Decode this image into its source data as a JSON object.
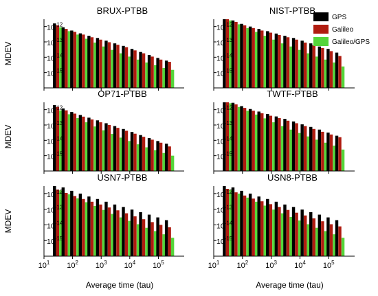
{
  "chart_data": {
    "type": "bar",
    "grid": false,
    "legend_placement": "top-right",
    "legend": [
      {
        "name": "GPS",
        "color": "#000000"
      },
      {
        "name": "Galileo",
        "color": "#b01c10"
      },
      {
        "name": "Galileo/GPS",
        "color": "#55d53a"
      }
    ],
    "ylabel": "MDEV",
    "xlabel": "Average time (tau)",
    "x_scale": "log",
    "y_scale": "log",
    "xlim": [
      10,
      800000
    ],
    "ylim": [
      1e-16,
      3e-12
    ],
    "x_ticks": [
      {
        "label": "10",
        "sup": "1",
        "value": 10
      },
      {
        "label": "10",
        "sup": "2",
        "value": 100
      },
      {
        "label": "10",
        "sup": "3",
        "value": 1000
      },
      {
        "label": "10",
        "sup": "4",
        "value": 10000
      },
      {
        "label": "10",
        "sup": "5",
        "value": 100000
      }
    ],
    "y_ticks": [
      {
        "label": "10",
        "sup": "-12",
        "value": 1e-12
      },
      {
        "label": "10",
        "sup": "-13",
        "value": 1e-13
      },
      {
        "label": "10",
        "sup": "-14",
        "value": 1e-14
      },
      {
        "label": "10",
        "sup": "-15",
        "value": 1e-15
      }
    ],
    "tau": [
      30,
      60,
      120,
      240,
      480,
      960,
      1920,
      3840,
      7680,
      15360,
      30720,
      61440,
      122880,
      245760
    ],
    "panels": [
      {
        "title": "BRUX-PTBB",
        "series": [
          {
            "name": "GPS",
            "values": [
              1.6e-12,
              9e-13,
              5.5e-13,
              3.6e-13,
              2.5e-13,
              1.8e-13,
              1.2e-13,
              8e-14,
              5.5e-14,
              3.5e-14,
              2.2e-14,
              1.4e-14,
              9e-15,
              6e-15
            ]
          },
          {
            "name": "Galileo",
            "values": [
              1.2e-12,
              7e-13,
              4.5e-13,
              3e-13,
              2e-13,
              1.4e-13,
              9.5e-14,
              6.5e-14,
              4.5e-14,
              2.8e-14,
              1.8e-14,
              1.1e-14,
              7e-15,
              5e-15
            ]
          },
          {
            "name": "Galileo/GPS",
            "values": [
              9e-13,
              5e-13,
              3e-13,
              1.6e-13,
              9e-14,
              5e-14,
              3e-14,
              1.8e-14,
              1.1e-14,
              7e-15,
              4.5e-15,
              3e-15,
              2e-15,
              1.5e-15
            ]
          }
        ]
      },
      {
        "title": "NIST-PTBB",
        "series": [
          {
            "name": "GPS",
            "values": [
              4.5e-12,
              2.5e-12,
              1.5e-12,
              1e-12,
              7e-13,
              5e-13,
              3.5e-13,
              2.5e-13,
              1.8e-13,
              1.2e-13,
              8e-14,
              5e-14,
              3.5e-14,
              2e-14
            ]
          },
          {
            "name": "Galileo",
            "values": [
              3.5e-12,
              2e-12,
              1.2e-12,
              8e-13,
              5.5e-13,
              4e-13,
              2.8e-13,
              2e-13,
              1.4e-13,
              9e-14,
              6e-14,
              4e-14,
              2.5e-14,
              1.2e-14
            ]
          },
          {
            "name": "Galileo/GPS",
            "values": [
              2.5e-12,
              1.4e-12,
              8e-13,
              4.5e-13,
              2.5e-13,
              1.4e-13,
              8e-14,
              5e-14,
              3e-14,
              1.8e-14,
              1.1e-14,
              7e-15,
              4.5e-15,
              2.5e-15
            ]
          }
        ]
      },
      {
        "title": "OP71-PTBB",
        "series": [
          {
            "name": "GPS",
            "values": [
              2e-12,
              1.2e-12,
              7e-13,
              4.5e-13,
              3e-13,
              2e-13,
              1.3e-13,
              8.5e-14,
              5.5e-14,
              3.5e-14,
              2.2e-14,
              1.4e-14,
              9e-15,
              6e-15
            ]
          },
          {
            "name": "Galileo",
            "values": [
              1.5e-12,
              9e-13,
              5.5e-13,
              3.5e-13,
              2.3e-13,
              1.5e-13,
              1e-13,
              6.5e-14,
              4.2e-14,
              2.7e-14,
              1.7e-14,
              1.1e-14,
              7e-15,
              4e-15
            ]
          },
          {
            "name": "Galileo/GPS",
            "values": [
              9e-13,
              5e-13,
              2.8e-13,
              1.5e-13,
              8e-14,
              4.5e-14,
              2.6e-14,
              1.5e-14,
              9e-15,
              5.5e-15,
              3.5e-15,
              2.3e-15,
              1.5e-15,
              1e-15
            ]
          }
        ]
      },
      {
        "title": "TWTF-PTBB",
        "series": [
          {
            "name": "GPS",
            "values": [
              5e-12,
              2.8e-12,
              1.7e-12,
              1.1e-12,
              7.5e-13,
              5.2e-13,
              3.6e-13,
              2.5e-13,
              1.7e-13,
              1.1e-13,
              7.5e-14,
              5e-14,
              3.2e-14,
              2e-14
            ]
          },
          {
            "name": "Galileo",
            "values": [
              3.8e-12,
              2.2e-12,
              1.3e-12,
              8.5e-13,
              5.8e-13,
              4e-13,
              2.8e-13,
              1.9e-13,
              1.3e-13,
              8.5e-14,
              5.5e-14,
              3.6e-14,
              2.4e-14,
              1.6e-14
            ]
          },
          {
            "name": "Galileo/GPS",
            "values": [
              2.6e-12,
              1.5e-12,
              8.5e-13,
              4.8e-13,
              2.7e-13,
              1.5e-13,
              8.5e-14,
              5e-14,
              3e-14,
              1.8e-14,
              1.1e-14,
              7e-15,
              4.5e-15,
              2.5e-15
            ]
          }
        ]
      },
      {
        "title": "USN7-PTBB",
        "series": [
          {
            "name": "GPS",
            "values": [
              4.5e-12,
              2.5e-12,
              1.5e-12,
              1e-12,
              6.5e-13,
              4.5e-13,
              3e-13,
              2e-13,
              1.4e-13,
              9.5e-14,
              6.5e-14,
              4.5e-14,
              3e-14,
              2e-14
            ]
          },
          {
            "name": "Galileo",
            "values": [
              1.8e-12,
              1.1e-12,
              7e-13,
              4.5e-13,
              3e-13,
              2e-13,
              1.3e-13,
              8.5e-14,
              5.5e-14,
              3.5e-14,
              2.3e-14,
              1.5e-14,
              1e-14,
              7e-15
            ]
          },
          {
            "name": "Galileo/GPS",
            "values": [
              1.6e-12,
              9e-13,
              5e-13,
              2.8e-13,
              1.6e-13,
              9e-14,
              5e-14,
              3e-14,
              1.8e-14,
              1.1e-14,
              6.5e-15,
              4e-15,
              2.5e-15,
              1.5e-15
            ]
          }
        ]
      },
      {
        "title": "USN8-PTBB",
        "series": [
          {
            "name": "GPS",
            "values": [
              4.5e-12,
              2.5e-12,
              1.5e-12,
              1e-12,
              6.5e-13,
              4.5e-13,
              3e-13,
              2e-13,
              1.4e-13,
              9.5e-14,
              6.5e-14,
              4.5e-14,
              3e-14,
              2e-14
            ]
          },
          {
            "name": "Galileo",
            "values": [
              2e-12,
              1.2e-12,
              7.5e-13,
              4.8e-13,
              3.2e-13,
              2.1e-13,
              1.4e-13,
              9e-14,
              6e-14,
              4e-14,
              2.6e-14,
              1.7e-14,
              1.1e-14,
              8e-15
            ]
          },
          {
            "name": "Galileo/GPS",
            "values": [
              1.8e-12,
              1e-12,
              5.5e-13,
              3e-13,
              1.7e-13,
              9.5e-14,
              5.5e-14,
              3.2e-14,
              1.9e-14,
              1.1e-14,
              6.5e-15,
              4e-15,
              2.5e-15,
              1.5e-15
            ]
          }
        ]
      }
    ]
  }
}
